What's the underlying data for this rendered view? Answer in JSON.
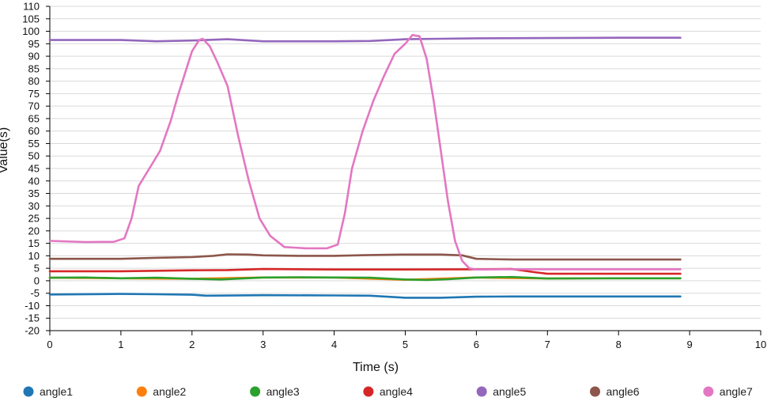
{
  "chart_data": {
    "type": "line",
    "title": "",
    "xlabel": "Time (s)",
    "ylabel": "Value(s)",
    "xlim": [
      0,
      10
    ],
    "ylim": [
      -20,
      110
    ],
    "xticks": [
      0,
      1,
      2,
      3,
      4,
      5,
      6,
      7,
      8,
      9,
      10
    ],
    "yticks": [
      -20,
      -15,
      -10,
      -5,
      0,
      5,
      10,
      15,
      20,
      25,
      30,
      35,
      40,
      45,
      50,
      55,
      60,
      65,
      70,
      75,
      80,
      85,
      90,
      95,
      100,
      105,
      110
    ],
    "grid": true,
    "legend_position": "bottom",
    "series": [
      {
        "name": "angle1",
        "color": "#1f77b4",
        "x": [
          0,
          1,
          1.5,
          2,
          2.2,
          3,
          4,
          4.5,
          5,
          5.5,
          6,
          6.5,
          7,
          8,
          8.87
        ],
        "y": [
          -5.5,
          -5.3,
          -5.4,
          -5.6,
          -6.0,
          -5.8,
          -5.9,
          -6.0,
          -6.8,
          -6.8,
          -6.4,
          -6.3,
          -6.3,
          -6.3,
          -6.3
        ]
      },
      {
        "name": "angle2",
        "color": "#ff7f0e",
        "x": [
          0,
          1,
          2,
          3,
          4,
          5,
          6,
          7,
          8,
          8.87
        ],
        "y": [
          1.2,
          1.0,
          0.8,
          1.3,
          1.3,
          0.4,
          1.3,
          0.9,
          1.0,
          1.0
        ]
      },
      {
        "name": "angle3",
        "color": "#2ca02c",
        "x": [
          0,
          0.5,
          1,
          1.5,
          2,
          2.4,
          3,
          3.5,
          4,
          4.5,
          5,
          5.3,
          5.6,
          6,
          6.5,
          7,
          8,
          8.87
        ],
        "y": [
          1.2,
          1.3,
          1.0,
          1.2,
          0.8,
          0.5,
          1.3,
          1.4,
          1.3,
          1.2,
          0.5,
          0.3,
          0.6,
          1.3,
          1.5,
          0.9,
          1.0,
          1.0
        ]
      },
      {
        "name": "angle4",
        "color": "#d62728",
        "x": [
          0,
          1,
          2,
          2.5,
          3,
          4,
          5,
          6,
          6.5,
          6.8,
          7,
          8,
          8.87
        ],
        "y": [
          3.8,
          3.8,
          4.2,
          4.3,
          4.7,
          4.5,
          4.5,
          4.6,
          4.7,
          3.5,
          2.8,
          2.8,
          2.8
        ]
      },
      {
        "name": "angle5",
        "color": "#9467bd",
        "x": [
          0,
          1,
          1.5,
          2,
          2.5,
          3,
          3.5,
          4,
          4.5,
          5,
          5.5,
          6,
          7,
          8,
          8.87
        ],
        "y": [
          96.5,
          96.5,
          96.0,
          96.3,
          96.8,
          96.0,
          96.0,
          96.0,
          96.1,
          96.8,
          97.0,
          97.2,
          97.3,
          97.4,
          97.4
        ]
      },
      {
        "name": "angle6",
        "color": "#8c564b",
        "x": [
          0,
          1,
          1.5,
          2,
          2.3,
          2.5,
          2.8,
          3,
          3.5,
          4,
          4.5,
          5,
          5.5,
          5.8,
          6,
          6.5,
          7,
          8,
          8.87
        ],
        "y": [
          8.8,
          8.8,
          9.2,
          9.5,
          10.0,
          10.6,
          10.5,
          10.2,
          10.0,
          10.0,
          10.3,
          10.5,
          10.5,
          10.2,
          8.8,
          8.5,
          8.5,
          8.5,
          8.5
        ]
      },
      {
        "name": "angle7",
        "color": "#e377c2",
        "x": [
          0,
          0.5,
          0.9,
          1.05,
          1.15,
          1.25,
          1.4,
          1.55,
          1.7,
          1.8,
          1.9,
          2.0,
          2.1,
          2.15,
          2.25,
          2.35,
          2.5,
          2.65,
          2.8,
          2.95,
          3.1,
          3.3,
          3.6,
          3.9,
          4.05,
          4.15,
          4.25,
          4.4,
          4.55,
          4.7,
          4.85,
          5.0,
          5.1,
          5.2,
          5.3,
          5.4,
          5.5,
          5.6,
          5.7,
          5.8,
          5.9,
          6.0,
          6.5,
          7.0,
          8.0,
          8.87
        ],
        "y": [
          16,
          15.5,
          15.6,
          17,
          25,
          38,
          45,
          52,
          64,
          74,
          83,
          92,
          96.5,
          97,
          94,
          88,
          78,
          58,
          40,
          25,
          18,
          13.5,
          13,
          13,
          14.5,
          27,
          45,
          60,
          72,
          82,
          91,
          95,
          98.5,
          98,
          89,
          72,
          52,
          32,
          16,
          8,
          5,
          4.5,
          4.6,
          4.6,
          4.6,
          4.6
        ]
      }
    ]
  }
}
